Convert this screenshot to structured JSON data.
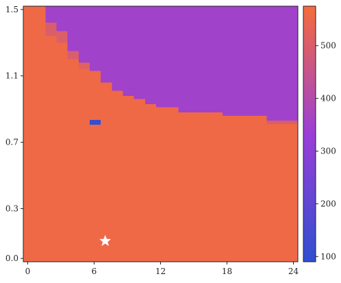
{
  "chart_data": {
    "type": "heatmap",
    "title": "",
    "xlabel": "",
    "ylabel": "",
    "xlim": [
      -0.4,
      24.4
    ],
    "ylim": [
      -0.02,
      1.52
    ],
    "x_ticks": [
      "0",
      "6",
      "12",
      "18",
      "24"
    ],
    "x_tick_values": [
      0,
      6,
      12,
      18,
      24
    ],
    "y_ticks": [
      "0.0",
      "0.3",
      "0.7",
      "1.1",
      "1.5"
    ],
    "y_tick_values": [
      0.0,
      0.3,
      0.7,
      1.1,
      1.5
    ],
    "colorbar": {
      "min": 90,
      "max": 575,
      "ticks": [
        "100",
        "200",
        "300",
        "400",
        "500"
      ],
      "tick_values": [
        100,
        200,
        300,
        400,
        500
      ],
      "colors": [
        "#2f4fd0",
        "#9a3fd6",
        "#f56c3c"
      ]
    },
    "background_value": 560,
    "boundary": {
      "value": 540,
      "steps": [
        {
          "x0": 1.6,
          "x1": 2.6,
          "y": 1.42
        },
        {
          "x0": 2.6,
          "x1": 3.6,
          "y": 1.37
        },
        {
          "x0": 3.6,
          "x1": 4.6,
          "y": 1.25
        },
        {
          "x0": 4.6,
          "x1": 5.6,
          "y": 1.18
        },
        {
          "x0": 5.6,
          "x1": 6.6,
          "y": 1.13
        },
        {
          "x0": 6.6,
          "x1": 7.6,
          "y": 1.06
        },
        {
          "x0": 7.6,
          "x1": 8.6,
          "y": 1.01
        },
        {
          "x0": 8.6,
          "x1": 9.6,
          "y": 0.98
        },
        {
          "x0": 9.6,
          "x1": 10.6,
          "y": 0.96
        },
        {
          "x0": 10.6,
          "x1": 11.6,
          "y": 0.93
        },
        {
          "x0": 11.6,
          "x1": 13.6,
          "y": 0.91
        },
        {
          "x0": 13.6,
          "x1": 17.6,
          "y": 0.88
        },
        {
          "x0": 17.6,
          "x1": 21.6,
          "y": 0.86
        },
        {
          "x0": 21.6,
          "x1": 24.4,
          "y": 0.83
        }
      ]
    },
    "upper_region_value": 350,
    "transition_cells": [
      {
        "x0": 1.6,
        "x1": 2.6,
        "y0": 1.34,
        "y1": 1.42,
        "value": 500
      },
      {
        "x0": 2.6,
        "x1": 3.6,
        "y0": 1.3,
        "y1": 1.37,
        "value": 505
      },
      {
        "x0": 3.6,
        "x1": 4.6,
        "y0": 1.2,
        "y1": 1.25,
        "value": 500
      },
      {
        "x0": 4.6,
        "x1": 5.6,
        "y0": 1.14,
        "y1": 1.18,
        "value": 520
      },
      {
        "x0": 21.6,
        "x1": 24.4,
        "y0": 0.81,
        "y1": 0.83,
        "value": 500
      }
    ],
    "anomaly_cells": [
      {
        "x0": 5.6,
        "x1": 6.6,
        "y0": 0.805,
        "y1": 0.835,
        "value": 100
      }
    ],
    "markers": [
      {
        "shape": "star",
        "x": 7.0,
        "y": 0.105,
        "color": "#ffffff"
      }
    ]
  }
}
